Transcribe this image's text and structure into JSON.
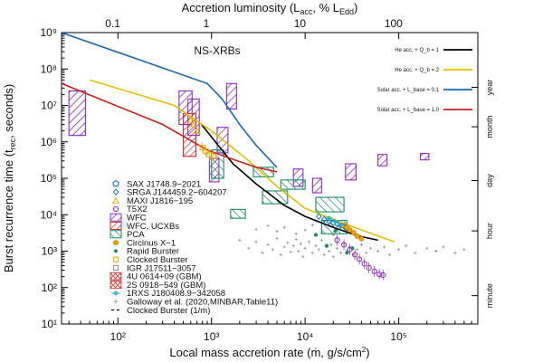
{
  "chart_data": {
    "type": "scatter",
    "title": "Accretion luminosity (L_acc, % L_Edd)",
    "plot_title": "NS-XRBs",
    "xlabel": "Local mass accretion rate (ṁ, g/s/cm²)",
    "ylabel": "Burst recurrence time (t_rec, seconds)",
    "xlim": [
      25,
      700000
    ],
    "ylim": [
      10,
      1000000000
    ],
    "x_scale": "log",
    "y_scale": "log",
    "x_ticks": [
      {
        "value": 100,
        "label": "10²"
      },
      {
        "value": 1000,
        "label": "10³"
      },
      {
        "value": 10000,
        "label": "10⁴"
      },
      {
        "value": 100000,
        "label": "10⁵"
      }
    ],
    "y_ticks": [
      {
        "value": 10,
        "label": "10¹"
      },
      {
        "value": 100,
        "label": "10²"
      },
      {
        "value": 1000,
        "label": "10³"
      },
      {
        "value": 10000,
        "label": "10⁴"
      },
      {
        "value": 100000,
        "label": "10⁵"
      },
      {
        "value": 1000000,
        "label": "10⁶"
      },
      {
        "value": 10000000,
        "label": "10⁷"
      },
      {
        "value": 100000000,
        "label": "10⁸"
      },
      {
        "value": 1000000000,
        "label": "10⁹"
      }
    ],
    "top_axis": {
      "ticks": [
        {
          "mdot": 88,
          "label": "0.1"
        },
        {
          "mdot": 880,
          "label": "1"
        },
        {
          "mdot": 8800,
          "label": "10"
        },
        {
          "mdot": 88000,
          "label": "100"
        }
      ]
    },
    "right_axis": {
      "ticks": [
        {
          "value": 60,
          "label": "minute"
        },
        {
          "value": 3600,
          "label": "hour"
        },
        {
          "value": 86400,
          "label": "day"
        },
        {
          "value": 2600000,
          "label": "month"
        },
        {
          "value": 31500000,
          "label": "year"
        }
      ]
    },
    "model_series": [
      {
        "name": "He acc. + Q_b = 1",
        "color": "#000000",
        "points": [
          [
            780,
            3000000
          ],
          [
            1100,
            1000000
          ],
          [
            1700,
            250000
          ],
          [
            3000,
            70000
          ],
          [
            6000,
            18000
          ],
          [
            10000,
            9000
          ],
          [
            20000,
            4500
          ],
          [
            35000,
            2700
          ],
          [
            60000,
            2000
          ]
        ]
      },
      {
        "name": "He acc. + Q_b = 2",
        "color": "#e0c000",
        "points": [
          [
            50,
            50000000
          ],
          [
            400,
            10000000
          ],
          [
            1000,
            2000000
          ],
          [
            2500,
            300000
          ],
          [
            5000,
            60000
          ],
          [
            10000,
            15000
          ],
          [
            30000,
            5000
          ],
          [
            90000,
            1800
          ]
        ]
      },
      {
        "name": "Solar acc. + L_base = 0.1",
        "color": "#1f66aa",
        "points": [
          [
            25,
            1000000000
          ],
          [
            900,
            40000000
          ],
          [
            1300,
            15000000
          ],
          [
            2000,
            3000000
          ],
          [
            3000,
            800000
          ],
          [
            5000,
            200000
          ]
        ]
      },
      {
        "name": "Solar acc. + L_base = 1.0",
        "color": "#cc1f1f",
        "points": [
          [
            25,
            40000000
          ],
          [
            300,
            3000000
          ],
          [
            900,
            600000
          ],
          [
            1600,
            350000
          ],
          [
            3000,
            200000
          ],
          [
            5000,
            150000
          ]
        ]
      }
    ],
    "legend_top": [
      {
        "label": "He acc. + Q_b = 1",
        "color": "#000000"
      },
      {
        "label": "He acc. + Q_b = 2",
        "color": "#e0c000"
      },
      {
        "label": "Solar acc. + L_base = 0.1",
        "color": "#1f66aa"
      },
      {
        "label": "Solar acc. + L_base = 1.0",
        "color": "#cc1f1f"
      }
    ],
    "legend_obs": [
      {
        "label": "SAX J1748.9−2021",
        "marker": "pentagon",
        "color": "#1a73c0"
      },
      {
        "label": "SRGA J144459.2−604207",
        "marker": "diamond",
        "color": "#1a73c0"
      },
      {
        "label": "MAXI J1816−195",
        "marker": "triangle",
        "color": "#e0b000"
      },
      {
        "label": "T5X2",
        "marker": "circle",
        "color": "#8e2bbf"
      },
      {
        "label": "WFC",
        "marker": "hatch",
        "color": "#8e2bbf"
      },
      {
        "label": "WFC, UCXBs",
        "marker": "hatch",
        "color": "#cc2a2a"
      },
      {
        "label": "PCA",
        "marker": "hatch",
        "color": "#1a8a6a"
      },
      {
        "label": "Circinus X−1",
        "marker": "circle-filled",
        "color": "#f5a300"
      },
      {
        "label": "Rapid Burster",
        "marker": "dot",
        "color": "#1a8a6a"
      },
      {
        "label": "Clocked Burster",
        "marker": "square",
        "color": "#e8a000"
      },
      {
        "label": "IGR J17511−3057",
        "marker": "square-open",
        "color": "#888888"
      },
      {
        "label": "4U 0614+09 (GBM)",
        "marker": "hatch-x",
        "color": "#d05050"
      },
      {
        "label": "2S 0918−549 (GBM)",
        "marker": "hatch-x",
        "color": "#d05050"
      },
      {
        "label": "1RXS J180408.9−342058",
        "marker": "cross-bar",
        "color": "#22aadd"
      },
      {
        "label": "Galloway et al. (2020,MINBAR,Table11)",
        "marker": "plus",
        "color": "#999999"
      },
      {
        "label": "Clocked Burster (1/ṁ)",
        "marker": "dash",
        "color": "#000000"
      }
    ],
    "obs_boxes": [
      {
        "set": "WFC",
        "color": "#8e2bbf",
        "x": [
          30,
          45
        ],
        "y": [
          1500000,
          25000000
        ]
      },
      {
        "set": "WFC",
        "color": "#8e2bbf",
        "x": [
          450,
          620
        ],
        "y": [
          3000000,
          25000000
        ]
      },
      {
        "set": "WFC",
        "color": "#8e2bbf",
        "x": [
          560,
          740
        ],
        "y": [
          1500000,
          15000000
        ]
      },
      {
        "set": "WFC",
        "color": "#8e2bbf",
        "x": [
          1450,
          1850
        ],
        "y": [
          8000000,
          40000000
        ]
      },
      {
        "set": "WFC",
        "color": "#8e2bbf",
        "x": [
          1150,
          1500
        ],
        "y": [
          500000,
          2500000
        ]
      },
      {
        "set": "WFC",
        "color": "#8e2bbf",
        "x": [
          950,
          1200
        ],
        "y": [
          80000,
          350000
        ]
      },
      {
        "set": "WFC",
        "color": "#8e2bbf",
        "x": [
          7500,
          9500
        ],
        "y": [
          60000,
          180000
        ]
      },
      {
        "set": "WFC",
        "color": "#8e2bbf",
        "x": [
          12000,
          15000
        ],
        "y": [
          40000,
          100000
        ]
      },
      {
        "set": "WFC",
        "color": "#8e2bbf",
        "x": [
          27000,
          35000
        ],
        "y": [
          90000,
          250000
        ]
      },
      {
        "set": "WFC",
        "color": "#8e2bbf",
        "x": [
          60000,
          75000
        ],
        "y": [
          220000,
          450000
        ]
      },
      {
        "set": "WFC",
        "color": "#8e2bbf",
        "x": [
          170000,
          210000
        ],
        "y": [
          320000,
          480000
        ]
      },
      {
        "set": "WFC, UCXBs",
        "color": "#cc2a2a",
        "x": [
          500,
          680
        ],
        "y": [
          400000,
          6000000
        ]
      },
      {
        "set": "PCA",
        "color": "#1a8a6a",
        "x": [
          1000,
          1350
        ],
        "y": [
          100000,
          600000
        ]
      },
      {
        "set": "PCA",
        "color": "#1a8a6a",
        "x": [
          1600,
          2300
        ],
        "y": [
          8000,
          14000
        ]
      },
      {
        "set": "PCA",
        "color": "#1a8a6a",
        "x": [
          3500,
          6500
        ],
        "y": [
          20000,
          45000
        ]
      },
      {
        "set": "PCA",
        "color": "#1a8a6a",
        "x": [
          5500,
          10000
        ],
        "y": [
          50000,
          90000
        ]
      },
      {
        "set": "PCA",
        "color": "#1a8a6a",
        "x": [
          13000,
          26000
        ],
        "y": [
          12000,
          30000
        ]
      },
      {
        "set": "PCA",
        "color": "#1a8a6a",
        "x": [
          15000,
          28000
        ],
        "y": [
          3000,
          7000
        ]
      },
      {
        "set": "PCA",
        "color": "#1a8a6a",
        "x": [
          2800,
          4600
        ],
        "y": [
          110000,
          200000
        ]
      }
    ],
    "obs_points": [
      {
        "set": "SRGA J144459.2−604207",
        "color": "#1a73c0",
        "marker": "diamond",
        "points": [
          [
            14000,
            9000
          ],
          [
            16000,
            7500
          ],
          [
            18000,
            6500
          ],
          [
            20000,
            6000
          ],
          [
            22000,
            5500
          ],
          [
            24000,
            5000
          ],
          [
            27000,
            4500
          ]
        ]
      },
      {
        "set": "Circinus X−1",
        "color": "#f5a300",
        "marker": "circle-filled",
        "points": [
          [
            25000,
            5000
          ],
          [
            28000,
            4500
          ],
          [
            30000,
            3800
          ],
          [
            33000,
            3200
          ],
          [
            36000,
            2600
          ],
          [
            40000,
            2200
          ]
        ]
      },
      {
        "set": "T5X2",
        "color": "#8e2bbf",
        "marker": "circle",
        "points": [
          [
            22000,
            2000
          ],
          [
            26000,
            1500
          ],
          [
            30000,
            1100
          ],
          [
            34000,
            800
          ],
          [
            38000,
            600
          ],
          [
            43000,
            450
          ],
          [
            48000,
            350
          ],
          [
            55000,
            280
          ],
          [
            62000,
            230
          ],
          [
            68000,
            220
          ]
        ]
      },
      {
        "set": "Rapid Burster",
        "color": "#1a8a6a",
        "marker": "dot",
        "points": [
          [
            13000,
            2800
          ],
          [
            17000,
            1400
          ],
          [
            21000,
            3600
          ],
          [
            28000,
            900
          ],
          [
            32000,
            1200
          ]
        ]
      },
      {
        "set": "Clocked Burster",
        "color": "#e8a000",
        "marker": "square",
        "points": [
          [
            800,
            700000
          ],
          [
            870,
            550000
          ],
          [
            950,
            450000
          ],
          [
            1050,
            400000
          ]
        ]
      },
      {
        "set": "1RXS J180408.9−342058",
        "color": "#22aadd",
        "marker": "cross-bar",
        "points": [
          [
            18000,
            8000
          ],
          [
            21000,
            6500
          ],
          [
            24000,
            5200
          ]
        ]
      },
      {
        "set": "MAXI J1816−195",
        "color": "#e0b000",
        "marker": "triangle",
        "points": [
          [
            600,
            4000000
          ],
          [
            640,
            3000000
          ],
          [
            700,
            2000000
          ]
        ]
      }
    ],
    "minbar_points": [
      [
        2000,
        2000
      ],
      [
        2500,
        1200
      ],
      [
        3000,
        1800
      ],
      [
        3500,
        900
      ],
      [
        4000,
        1500
      ],
      [
        4500,
        1100
      ],
      [
        5000,
        2200
      ],
      [
        5500,
        800
      ],
      [
        6000,
        1300
      ],
      [
        6500,
        1700
      ],
      [
        7000,
        950
      ],
      [
        7500,
        1400
      ],
      [
        8000,
        2100
      ],
      [
        8500,
        1000
      ],
      [
        9000,
        1600
      ],
      [
        9500,
        700
      ],
      [
        10000,
        1200
      ],
      [
        11000,
        1800
      ],
      [
        12000,
        900
      ],
      [
        13000,
        1400
      ],
      [
        14000,
        1100
      ],
      [
        15000,
        2000
      ],
      [
        16000,
        800
      ],
      [
        17000,
        1300
      ],
      [
        18000,
        1000
      ],
      [
        19000,
        1500
      ],
      [
        20000,
        700
      ],
      [
        22000,
        1200
      ],
      [
        24000,
        900
      ],
      [
        26000,
        1600
      ],
      [
        28000,
        1000
      ],
      [
        30000,
        1300
      ],
      [
        33000,
        800
      ],
      [
        36000,
        1100
      ],
      [
        40000,
        1500
      ],
      [
        45000,
        900
      ],
      [
        50000,
        1200
      ],
      [
        60000,
        1000
      ],
      [
        70000,
        1300
      ],
      [
        80000,
        800
      ],
      [
        100000,
        1100
      ],
      [
        120000,
        1400
      ],
      [
        150000,
        900
      ],
      [
        200000,
        1200
      ],
      [
        250000,
        1000
      ],
      [
        300000,
        1300
      ],
      [
        400000,
        900
      ],
      [
        500000,
        1100
      ],
      [
        3000,
        4000
      ],
      [
        4000,
        5000
      ],
      [
        5000,
        3500
      ],
      [
        6000,
        4500
      ],
      [
        8000,
        3000
      ],
      [
        10000,
        3800
      ],
      [
        12000,
        5200
      ],
      [
        15000,
        3200
      ],
      [
        20000,
        2800
      ]
    ]
  }
}
